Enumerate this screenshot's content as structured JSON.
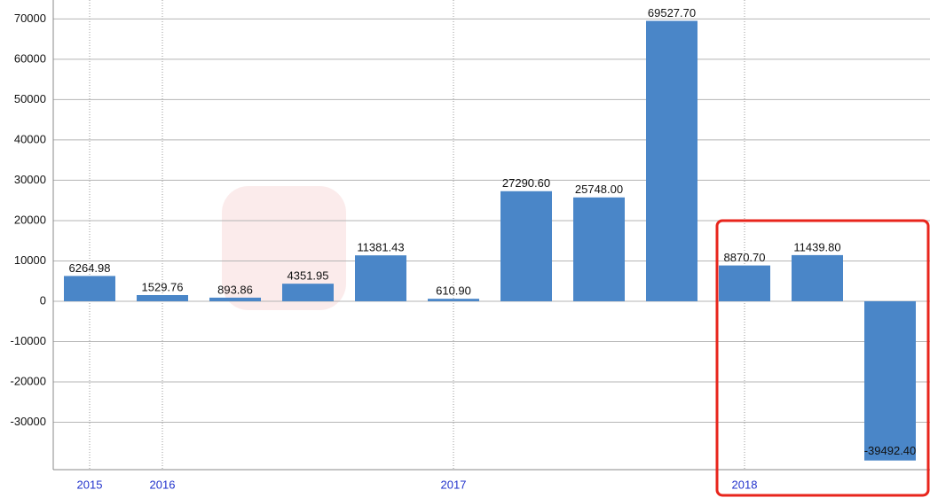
{
  "chart_data": {
    "type": "bar",
    "categories": [
      "2015",
      "2016",
      null,
      null,
      null,
      "2017",
      null,
      null,
      null,
      "2018",
      null,
      null
    ],
    "values": [
      6264.98,
      1529.76,
      893.86,
      4351.95,
      11381.43,
      610.9,
      27290.6,
      25748,
      69527.7,
      8870.7,
      11439.8,
      -39492.4
    ],
    "value_labels": [
      "6264.98",
      "1529.76",
      "893.86",
      "4351.95",
      "11381.43",
      "610.90",
      "27290.60",
      "25748.00",
      "69527.70",
      "8870.70",
      "11439.80",
      "-39492.40"
    ],
    "color": "#4a86c8",
    "ylim": [
      -40000,
      74700
    ],
    "yticks": [
      -30000,
      -20000,
      -10000,
      0,
      10000,
      20000,
      30000,
      40000,
      50000,
      60000,
      70000
    ],
    "grid": true
  }
}
